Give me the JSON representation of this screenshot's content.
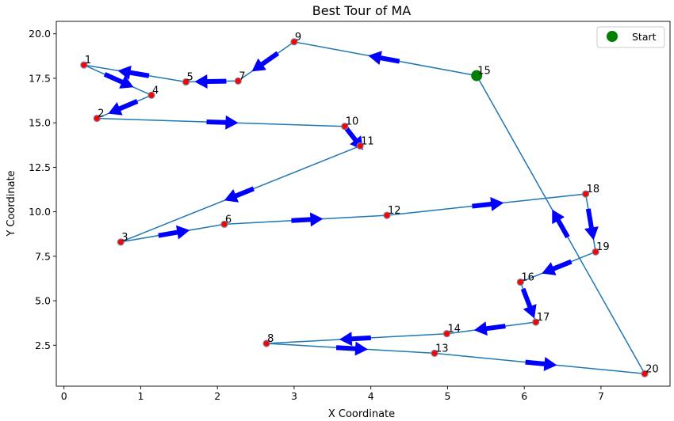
{
  "chart_data": {
    "type": "line",
    "title": "Best Tour of MA",
    "xlabel": "X Coordinate",
    "ylabel": "Y Coordinate",
    "xlim": [
      -0.1,
      7.9
    ],
    "ylim": [
      0.2,
      20.7
    ],
    "xticks": [
      0,
      1,
      2,
      3,
      4,
      5,
      6,
      7
    ],
    "yticks": [
      2.5,
      5.0,
      7.5,
      10.0,
      12.5,
      15.0,
      17.5,
      20.0
    ],
    "ytick_labels": [
      "2.5",
      "5.0",
      "7.5",
      "10.0",
      "12.5",
      "15.0",
      "17.5",
      "20.0"
    ],
    "grid": false,
    "legend": {
      "position": "top-right",
      "entries": [
        {
          "label": "Start",
          "color": "#008000"
        }
      ]
    },
    "colors": {
      "path": "#1f77b4",
      "arrow": "#0000ff",
      "node": "#ff0000",
      "node_edge": "#7f7f9f",
      "start": "#008000"
    },
    "start_node": "15",
    "nodes": [
      {
        "id": "1",
        "x": 0.26,
        "y": 18.25
      },
      {
        "id": "2",
        "x": 0.43,
        "y": 15.25
      },
      {
        "id": "3",
        "x": 0.74,
        "y": 8.3
      },
      {
        "id": "4",
        "x": 1.14,
        "y": 16.55
      },
      {
        "id": "5",
        "x": 1.59,
        "y": 17.3
      },
      {
        "id": "6",
        "x": 2.09,
        "y": 9.3
      },
      {
        "id": "7",
        "x": 2.27,
        "y": 17.35
      },
      {
        "id": "8",
        "x": 2.64,
        "y": 2.6
      },
      {
        "id": "9",
        "x": 3.0,
        "y": 19.55
      },
      {
        "id": "10",
        "x": 3.66,
        "y": 14.8
      },
      {
        "id": "11",
        "x": 3.86,
        "y": 13.7
      },
      {
        "id": "12",
        "x": 4.21,
        "y": 9.8
      },
      {
        "id": "13",
        "x": 4.83,
        "y": 2.05
      },
      {
        "id": "14",
        "x": 4.99,
        "y": 3.15
      },
      {
        "id": "15",
        "x": 5.38,
        "y": 17.65
      },
      {
        "id": "16",
        "x": 5.95,
        "y": 6.05
      },
      {
        "id": "17",
        "x": 6.15,
        "y": 3.8
      },
      {
        "id": "18",
        "x": 6.8,
        "y": 11.0
      },
      {
        "id": "19",
        "x": 6.93,
        "y": 7.75
      },
      {
        "id": "20",
        "x": 7.57,
        "y": 0.9
      }
    ],
    "tour": [
      "15",
      "9",
      "7",
      "5",
      "1",
      "4",
      "2",
      "10",
      "11",
      "3",
      "6",
      "12",
      "18",
      "19",
      "16",
      "17",
      "14",
      "8",
      "13",
      "20",
      "15"
    ]
  }
}
